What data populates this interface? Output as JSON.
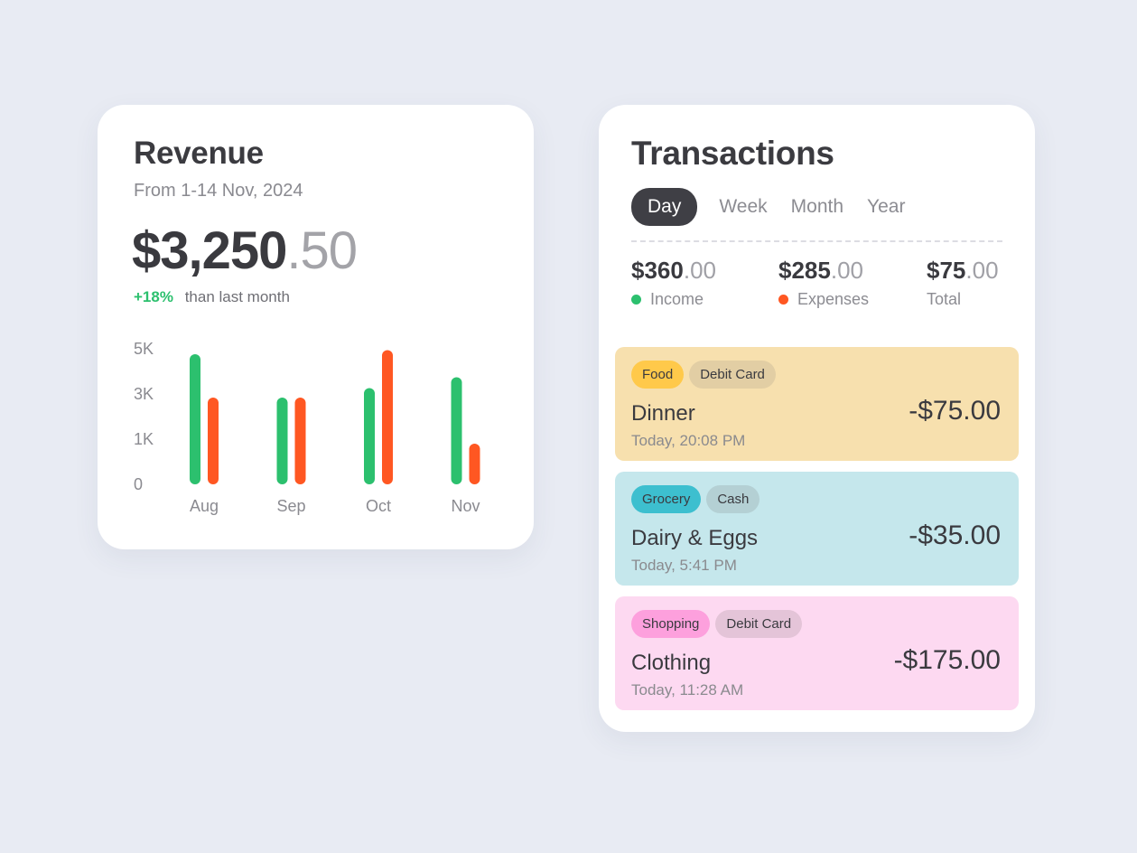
{
  "revenue": {
    "title": "Revenue",
    "subtitle": "From 1-14 Nov, 2024",
    "amount_main": "$3,250",
    "amount_cents": ".50",
    "change_pct": "+18%",
    "change_note": "than last month"
  },
  "colors": {
    "income": "#2cc06e",
    "expenses": "#ff5722",
    "background": "#e8ebf3",
    "card": "#ffffff",
    "food_row": "#f7e0ae",
    "grocery_row": "#c5e7ec",
    "shopping_row": "#fdd9f1"
  },
  "chart_data": {
    "type": "bar",
    "categories": [
      "Aug",
      "Sep",
      "Oct",
      "Nov"
    ],
    "y_ticks": [
      "5K",
      "3K",
      "1K",
      "0"
    ],
    "series": [
      {
        "color": "#2cc06e",
        "values": [
          0.96,
          0.64,
          0.71,
          0.79
        ]
      },
      {
        "color": "#ff5722",
        "values": [
          0.64,
          0.64,
          0.99,
          0.3
        ]
      }
    ],
    "value_scale": "fraction of top tick (5K)",
    "ylim": [
      0,
      1
    ]
  },
  "transactions": {
    "title": "Transactions",
    "tabs": [
      "Day",
      "Week",
      "Month",
      "Year"
    ],
    "active_tab": "Day",
    "summary": {
      "income": {
        "whole": "$360",
        "decimal": ".00",
        "label": "Income"
      },
      "expenses": {
        "whole": "$285",
        "decimal": ".00",
        "label": "Expenses"
      },
      "total": {
        "whole": "$75",
        "decimal": ".00",
        "label": "Total"
      }
    },
    "items": [
      {
        "tags": [
          "Food",
          "Debit Card"
        ],
        "name": "Dinner",
        "time": "Today, 20:08 PM",
        "amount": "-$75.00"
      },
      {
        "tags": [
          "Grocery",
          "Cash"
        ],
        "name": "Dairy & Eggs",
        "time": "Today, 5:41 PM",
        "amount": "-$35.00"
      },
      {
        "tags": [
          "Shopping",
          "Debit Card"
        ],
        "name": "Clothing",
        "time": "Today, 11:28 AM",
        "amount": "-$175.00"
      }
    ]
  }
}
